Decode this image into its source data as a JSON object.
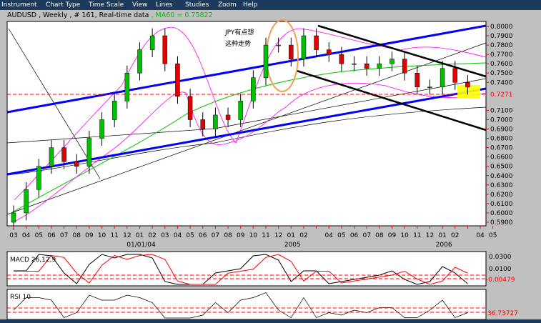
{
  "menu": [
    "Instrument",
    "Chart Type",
    "Time Scale",
    "View",
    "Lines",
    "Studies",
    "Zoom",
    "Help"
  ],
  "title": {
    "symbol": "AUDUSD",
    "period": "Weekly",
    "count": "# 161",
    "feed": "Real-time data",
    "ma": "MA60 = 0.75822"
  },
  "annotation": [
    "JPY有点想",
    "这种走势"
  ],
  "colors": {
    "menu_bg": "#1c3a5c",
    "up": "#00c000",
    "down": "#e00000",
    "channel_blue": "#0000ff",
    "ma": "#00c000",
    "bollinger": "#ff00ff",
    "last_price": "#ff0000",
    "highlight": "#ffff00",
    "circle": "#f0a050"
  },
  "chart_data": {
    "type": "candlestick",
    "y_ticks": [
      "0.8000",
      "0.7900",
      "0.7800",
      "0.7700",
      "0.7600",
      "0.7500",
      "0.7400",
      "0.7100",
      "0.7000",
      "0.6900",
      "0.6800",
      "0.6700",
      "0.6600",
      "0.6500",
      "0.6400",
      "0.6300",
      "0.6200",
      "0.6100",
      "0.6000",
      "0.5900"
    ],
    "ylim": [
      0.59,
      0.8
    ],
    "last_price": "0.7271",
    "month_labels": [
      "03",
      "04",
      "05",
      "06",
      "07",
      "08",
      "09",
      "10",
      "11",
      "12",
      "01",
      "02",
      "03",
      "04",
      "05",
      "06",
      "07",
      "08",
      "09",
      "10",
      "11",
      "12",
      "01",
      "02",
      "",
      "04",
      "05",
      "06",
      "07",
      "08",
      "09",
      "10",
      "11",
      "12",
      "01",
      "02",
      "",
      "04",
      "05"
    ],
    "year_labels": [
      {
        "label": "01/01/04",
        "month_index": 10
      },
      {
        "label": "2005",
        "month_index": 22
      },
      {
        "label": "2006",
        "month_index": 34
      }
    ],
    "closes": [
      0.6,
      0.625,
      0.65,
      0.67,
      0.655,
      0.65,
      0.68,
      0.7,
      0.72,
      0.75,
      0.775,
      0.79,
      0.76,
      0.725,
      0.7,
      0.69,
      0.705,
      0.7,
      0.72,
      0.745,
      0.78,
      0.78,
      0.765,
      0.79,
      0.775,
      0.77,
      0.76,
      0.76,
      0.755,
      0.76,
      0.765,
      0.75,
      0.735,
      0.735,
      0.755,
      0.74,
      0.735
    ],
    "macd": {
      "label": "MACD 26,12,9",
      "ticks": [
        "0.0300",
        "0.0100"
      ],
      "last": "-0.00479"
    },
    "rsi": {
      "label": "RSI 10",
      "last": "36.73727"
    }
  }
}
